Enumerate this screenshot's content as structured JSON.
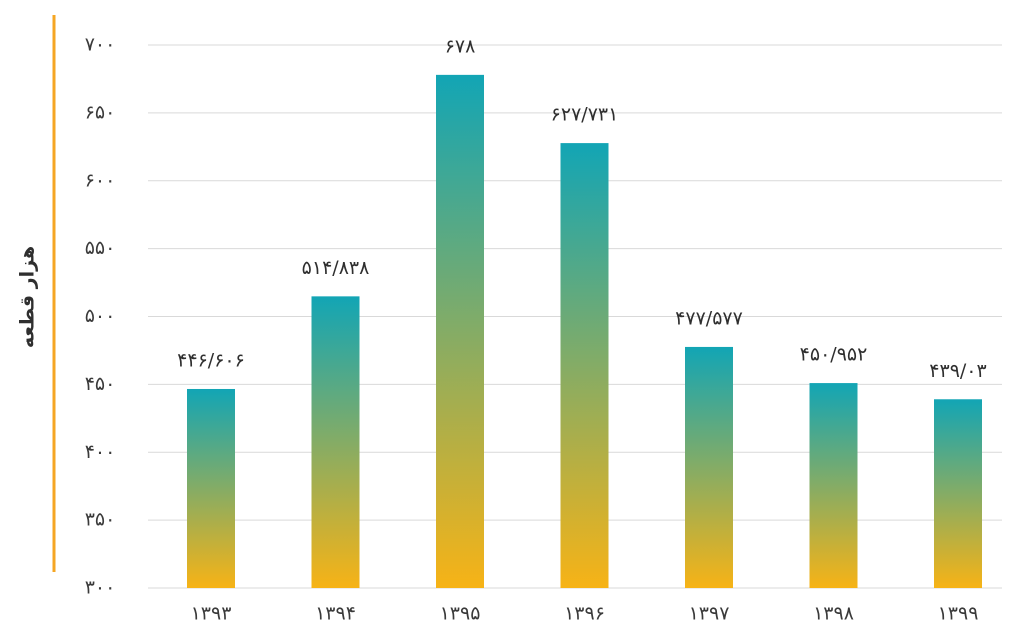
{
  "chart_data": {
    "type": "bar",
    "ylabel": "هزار قطعه",
    "xlabel": "",
    "ylim": [
      300,
      700
    ],
    "yticks": [
      300,
      350,
      400,
      450,
      500,
      550,
      600,
      650,
      700
    ],
    "ytick_labels": [
      "۳۰۰",
      "۳۵۰",
      "۴۰۰",
      "۴۵۰",
      "۵۰۰",
      "۵۵۰",
      "۶۰۰",
      "۶۵۰",
      "۷۰۰"
    ],
    "categories": [
      "۱۳۹۳",
      "۱۳۹۴",
      "۱۳۹۵",
      "۱۳۹۶",
      "۱۳۹۷",
      "۱۳۹۸",
      "۱۳۹۹"
    ],
    "values": [
      446.606,
      514.838,
      678,
      627.731,
      477.577,
      450.952,
      439.03
    ],
    "data_labels": [
      "۴۴۶/۶۰۶",
      "۵۱۴/۸۳۸",
      "۶۷۸",
      "۶۲۷/۷۳۱",
      "۴۷۷/۵۷۷",
      "۴۵۰/۹۵۲",
      "۴۳۹/۰۳"
    ],
    "grid": true,
    "colors": {
      "bar_top": "#12a5b5",
      "bar_bottom": "#f7b316",
      "accent_line": "#f5a623",
      "grid": "#d9d9d9"
    }
  }
}
